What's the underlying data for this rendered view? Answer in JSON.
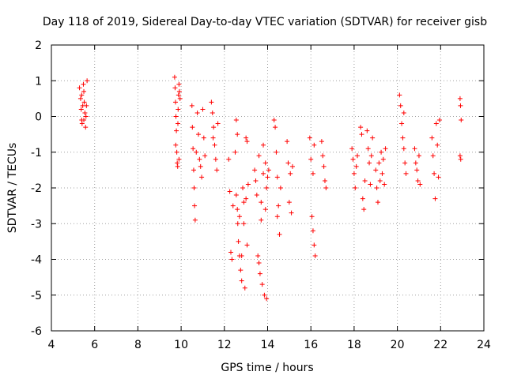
{
  "chart_data": {
    "type": "scatter",
    "title": "Day 118 of 2019, Sidereal Day-to-day VTEC variation (SDTVAR) for receiver gisb",
    "xlabel": "GPS time / hours",
    "ylabel": "SDTVAR / TECUs",
    "xlim": [
      4,
      24
    ],
    "ylim": [
      -6,
      2
    ],
    "xticks": [
      4,
      6,
      8,
      10,
      12,
      14,
      16,
      18,
      20,
      22,
      24
    ],
    "yticks": [
      -6,
      -5,
      -4,
      -3,
      -2,
      -1,
      0,
      1,
      2
    ],
    "grid": true,
    "marker": "+",
    "color": "#ff0000",
    "series": [
      {
        "name": "SDTVAR",
        "points": [
          [
            5.3,
            0.8
          ],
          [
            5.35,
            0.5
          ],
          [
            5.38,
            0.2
          ],
          [
            5.4,
            -0.1
          ],
          [
            5.42,
            -0.2
          ],
          [
            5.45,
            0.3
          ],
          [
            5.48,
            0.9
          ],
          [
            5.5,
            0.7
          ],
          [
            5.52,
            0.4
          ],
          [
            5.55,
            0.1
          ],
          [
            5.58,
            -0.3
          ],
          [
            5.6,
            0.0
          ],
          [
            5.62,
            0.3
          ],
          [
            5.65,
            1.0
          ],
          [
            5.4,
            0.6
          ],
          [
            5.5,
            -0.1
          ],
          [
            9.7,
            1.1
          ],
          [
            9.72,
            0.8
          ],
          [
            9.74,
            0.4
          ],
          [
            9.76,
            0.0
          ],
          [
            9.78,
            -0.4
          ],
          [
            9.8,
            -1.0
          ],
          [
            9.82,
            -1.3
          ],
          [
            9.84,
            -1.4
          ],
          [
            9.86,
            0.2
          ],
          [
            9.88,
            0.6
          ],
          [
            9.9,
            0.9
          ],
          [
            9.92,
            0.7
          ],
          [
            9.75,
            -0.8
          ],
          [
            9.85,
            -0.2
          ],
          [
            9.9,
            -1.2
          ],
          [
            9.95,
            0.5
          ],
          [
            10.5,
            0.3
          ],
          [
            10.52,
            -0.3
          ],
          [
            10.55,
            -0.9
          ],
          [
            10.58,
            -1.5
          ],
          [
            10.6,
            -2.0
          ],
          [
            10.62,
            -2.5
          ],
          [
            10.65,
            -2.9
          ],
          [
            10.7,
            -1.0
          ],
          [
            10.75,
            0.1
          ],
          [
            10.8,
            -0.5
          ],
          [
            10.85,
            -1.2
          ],
          [
            10.9,
            -1.4
          ],
          [
            10.95,
            -1.7
          ],
          [
            11.0,
            0.2
          ],
          [
            11.05,
            -0.6
          ],
          [
            11.1,
            -1.1
          ],
          [
            11.4,
            0.4
          ],
          [
            11.45,
            0.1
          ],
          [
            11.5,
            -0.3
          ],
          [
            11.55,
            -0.8
          ],
          [
            11.6,
            -1.2
          ],
          [
            11.65,
            -1.5
          ],
          [
            11.7,
            -0.2
          ],
          [
            11.48,
            -0.6
          ],
          [
            12.2,
            -1.2
          ],
          [
            12.25,
            -2.1
          ],
          [
            12.3,
            -3.8
          ],
          [
            12.35,
            -4.0
          ],
          [
            12.4,
            -2.5
          ],
          [
            12.5,
            -1.0
          ],
          [
            12.55,
            -2.2
          ],
          [
            12.6,
            -2.6
          ],
          [
            12.62,
            -3.0
          ],
          [
            12.65,
            -3.5
          ],
          [
            12.7,
            -3.9
          ],
          [
            12.75,
            -4.3
          ],
          [
            12.8,
            -4.6
          ],
          [
            12.85,
            -2.0
          ],
          [
            12.9,
            -2.4
          ],
          [
            12.95,
            -4.8
          ],
          [
            13.0,
            -2.3
          ],
          [
            13.05,
            -3.6
          ],
          [
            13.1,
            -1.9
          ],
          [
            13.0,
            -0.6
          ],
          [
            12.6,
            -0.5
          ],
          [
            12.55,
            -0.1
          ],
          [
            12.7,
            -2.8
          ],
          [
            12.8,
            -3.9
          ],
          [
            12.9,
            -3.0
          ],
          [
            13.05,
            -0.7
          ],
          [
            13.4,
            -1.5
          ],
          [
            13.45,
            -1.8
          ],
          [
            13.5,
            -2.2
          ],
          [
            13.55,
            -3.9
          ],
          [
            13.6,
            -4.1
          ],
          [
            13.65,
            -4.4
          ],
          [
            13.7,
            -2.4
          ],
          [
            13.75,
            -4.7
          ],
          [
            13.8,
            -1.6
          ],
          [
            13.85,
            -5.0
          ],
          [
            13.9,
            -1.3
          ],
          [
            13.95,
            -2.0
          ],
          [
            14.0,
            -1.7
          ],
          [
            14.05,
            -1.5
          ],
          [
            13.95,
            -5.1
          ],
          [
            13.6,
            -1.1
          ],
          [
            13.7,
            -2.9
          ],
          [
            13.8,
            -0.8
          ],
          [
            13.9,
            -2.6
          ],
          [
            14.3,
            -0.1
          ],
          [
            14.35,
            -0.3
          ],
          [
            14.4,
            -1.0
          ],
          [
            14.45,
            -1.7
          ],
          [
            14.5,
            -2.5
          ],
          [
            14.55,
            -3.3
          ],
          [
            14.6,
            -2.0
          ],
          [
            14.45,
            -2.8
          ],
          [
            14.9,
            -0.7
          ],
          [
            14.95,
            -1.3
          ],
          [
            15.0,
            -2.4
          ],
          [
            15.05,
            -1.6
          ],
          [
            15.1,
            -2.7
          ],
          [
            15.15,
            -1.4
          ],
          [
            15.95,
            -0.6
          ],
          [
            16.0,
            -1.2
          ],
          [
            16.05,
            -2.8
          ],
          [
            16.1,
            -3.2
          ],
          [
            16.15,
            -3.6
          ],
          [
            16.2,
            -3.9
          ],
          [
            16.1,
            -1.6
          ],
          [
            16.15,
            -0.8
          ],
          [
            16.5,
            -0.7
          ],
          [
            16.55,
            -1.1
          ],
          [
            16.6,
            -1.4
          ],
          [
            16.65,
            -1.8
          ],
          [
            16.7,
            -2.0
          ],
          [
            17.9,
            -0.9
          ],
          [
            17.95,
            -1.2
          ],
          [
            18.0,
            -1.6
          ],
          [
            18.05,
            -2.0
          ],
          [
            18.1,
            -1.4
          ],
          [
            18.15,
            -1.1
          ],
          [
            18.3,
            -0.3
          ],
          [
            18.35,
            -0.5
          ],
          [
            18.4,
            -2.3
          ],
          [
            18.45,
            -2.6
          ],
          [
            18.5,
            -1.8
          ],
          [
            18.6,
            -0.4
          ],
          [
            18.65,
            -0.9
          ],
          [
            18.7,
            -1.3
          ],
          [
            18.75,
            -1.9
          ],
          [
            18.8,
            -1.1
          ],
          [
            18.85,
            -0.6
          ],
          [
            19.0,
            -1.5
          ],
          [
            19.05,
            -2.0
          ],
          [
            19.1,
            -2.4
          ],
          [
            19.15,
            -1.3
          ],
          [
            19.2,
            -1.8
          ],
          [
            19.25,
            -1.0
          ],
          [
            19.3,
            -1.6
          ],
          [
            19.35,
            -1.2
          ],
          [
            19.4,
            -1.9
          ],
          [
            19.45,
            -0.9
          ],
          [
            20.1,
            0.6
          ],
          [
            20.15,
            0.3
          ],
          [
            20.2,
            -0.2
          ],
          [
            20.25,
            -0.6
          ],
          [
            20.3,
            -0.9
          ],
          [
            20.35,
            -1.3
          ],
          [
            20.4,
            -1.6
          ],
          [
            20.3,
            0.1
          ],
          [
            20.8,
            -0.9
          ],
          [
            20.85,
            -1.3
          ],
          [
            20.9,
            -1.5
          ],
          [
            20.95,
            -1.8
          ],
          [
            21.0,
            -1.1
          ],
          [
            21.05,
            -1.9
          ],
          [
            21.6,
            -0.6
          ],
          [
            21.65,
            -1.1
          ],
          [
            21.7,
            -1.6
          ],
          [
            21.75,
            -2.3
          ],
          [
            21.8,
            -0.2
          ],
          [
            21.85,
            -0.8
          ],
          [
            21.9,
            -1.7
          ],
          [
            21.95,
            -0.1
          ],
          [
            22.9,
            0.5
          ],
          [
            22.92,
            0.3
          ],
          [
            22.95,
            -0.1
          ],
          [
            22.9,
            -1.1
          ],
          [
            22.93,
            -1.2
          ]
        ]
      }
    ]
  }
}
